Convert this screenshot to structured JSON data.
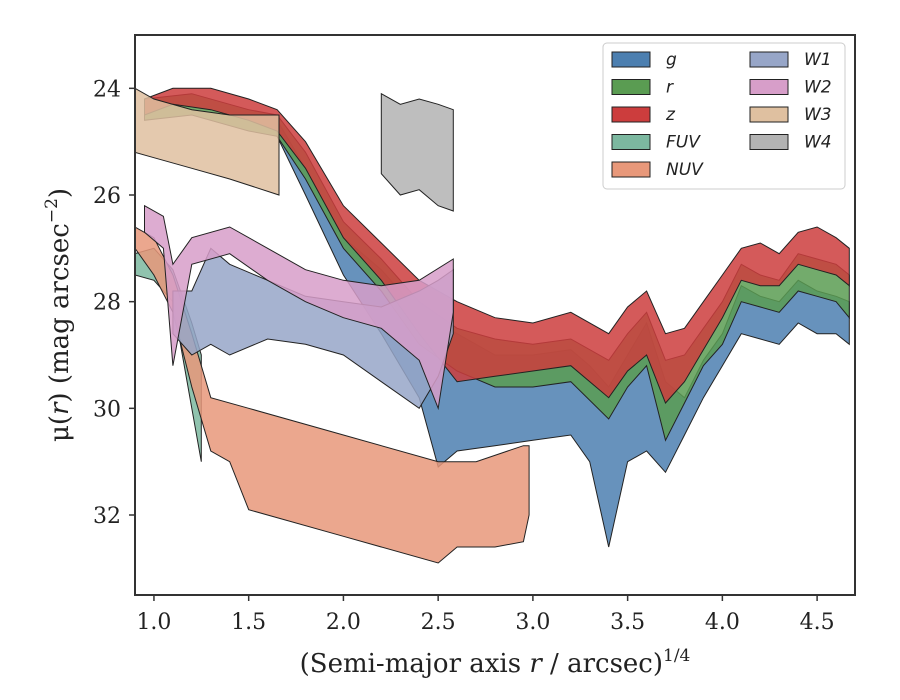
{
  "chart_data": {
    "type": "area",
    "xlabel_parts": [
      "(Semi-major axis ",
      "r",
      " / arcsec)",
      "1/4"
    ],
    "ylabel_parts": [
      "μ(",
      "r",
      ") (mag arcsec",
      "−2",
      ")"
    ],
    "xlim": [
      0.9,
      4.7
    ],
    "ylim": [
      33.5,
      23.0
    ],
    "y_inverted": true,
    "xticks": [
      1.0,
      1.5,
      2.0,
      2.5,
      3.0,
      3.5,
      4.0,
      4.5
    ],
    "xtick_labels": [
      "1.0",
      "1.5",
      "2.0",
      "2.5",
      "3.0",
      "3.5",
      "4.0",
      "4.5"
    ],
    "yticks": [
      24,
      26,
      28,
      30,
      32
    ],
    "ytick_labels": [
      "24",
      "26",
      "28",
      "30",
      "32"
    ],
    "grid": false,
    "legend_position": "top-right",
    "legend_columns": 2,
    "series": [
      {
        "name": "g",
        "color": "#4c7fb0",
        "upper": [
          [
            1.65,
            24.6
          ],
          [
            1.8,
            25.5
          ],
          [
            2.0,
            26.8
          ],
          [
            2.2,
            27.4
          ],
          [
            2.4,
            28.2
          ],
          [
            2.6,
            28.6
          ],
          [
            2.8,
            29.0
          ],
          [
            3.0,
            29.0
          ],
          [
            3.2,
            28.9
          ],
          [
            3.3,
            29.2
          ],
          [
            3.4,
            29.6
          ],
          [
            3.5,
            29.0
          ],
          [
            3.6,
            28.4
          ],
          [
            3.7,
            29.5
          ],
          [
            3.8,
            29.8
          ],
          [
            3.9,
            29.1
          ],
          [
            4.0,
            28.6
          ],
          [
            4.1,
            27.7
          ],
          [
            4.2,
            27.9
          ],
          [
            4.3,
            28.0
          ],
          [
            4.4,
            27.6
          ],
          [
            4.5,
            27.8
          ],
          [
            4.6,
            27.9
          ],
          [
            4.67,
            28.0
          ]
        ],
        "lower": [
          [
            1.65,
            24.9
          ],
          [
            1.8,
            26.0
          ],
          [
            2.0,
            27.5
          ],
          [
            2.2,
            28.6
          ],
          [
            2.4,
            29.8
          ],
          [
            2.5,
            31.1
          ],
          [
            2.6,
            30.8
          ],
          [
            2.8,
            30.7
          ],
          [
            3.0,
            30.6
          ],
          [
            3.2,
            30.5
          ],
          [
            3.3,
            31.0
          ],
          [
            3.4,
            32.6
          ],
          [
            3.5,
            31.0
          ],
          [
            3.6,
            30.8
          ],
          [
            3.7,
            31.2
          ],
          [
            3.8,
            30.5
          ],
          [
            3.9,
            29.8
          ],
          [
            4.0,
            29.2
          ],
          [
            4.1,
            28.6
          ],
          [
            4.2,
            28.7
          ],
          [
            4.3,
            28.8
          ],
          [
            4.4,
            28.4
          ],
          [
            4.5,
            28.6
          ],
          [
            4.6,
            28.6
          ],
          [
            4.67,
            28.8
          ]
        ]
      },
      {
        "name": "r",
        "color": "#5a9c52",
        "upper": [
          [
            0.95,
            24.2
          ],
          [
            1.2,
            24.1
          ],
          [
            1.5,
            24.4
          ],
          [
            1.65,
            24.5
          ],
          [
            1.8,
            25.2
          ],
          [
            2.0,
            26.5
          ],
          [
            2.2,
            27.2
          ],
          [
            2.4,
            28.0
          ],
          [
            2.6,
            28.5
          ],
          [
            2.8,
            28.7
          ],
          [
            3.0,
            28.8
          ],
          [
            3.2,
            28.7
          ],
          [
            3.4,
            29.1
          ],
          [
            3.5,
            28.6
          ],
          [
            3.6,
            28.2
          ],
          [
            3.7,
            29.1
          ],
          [
            3.8,
            29.0
          ],
          [
            3.9,
            28.5
          ],
          [
            4.0,
            28.0
          ],
          [
            4.1,
            27.3
          ],
          [
            4.2,
            27.5
          ],
          [
            4.3,
            27.6
          ],
          [
            4.4,
            27.1
          ],
          [
            4.5,
            27.2
          ],
          [
            4.6,
            27.3
          ],
          [
            4.67,
            27.5
          ]
        ],
        "lower": [
          [
            0.95,
            24.6
          ],
          [
            1.2,
            24.5
          ],
          [
            1.5,
            24.8
          ],
          [
            1.65,
            24.9
          ],
          [
            1.8,
            25.7
          ],
          [
            2.0,
            27.0
          ],
          [
            2.2,
            27.8
          ],
          [
            2.4,
            28.8
          ],
          [
            2.6,
            29.3
          ],
          [
            2.8,
            29.6
          ],
          [
            3.0,
            29.6
          ],
          [
            3.2,
            29.5
          ],
          [
            3.4,
            30.2
          ],
          [
            3.5,
            29.6
          ],
          [
            3.6,
            29.2
          ],
          [
            3.7,
            30.6
          ],
          [
            3.8,
            29.9
          ],
          [
            3.9,
            29.2
          ],
          [
            4.0,
            28.8
          ],
          [
            4.1,
            28.0
          ],
          [
            4.2,
            28.1
          ],
          [
            4.3,
            28.2
          ],
          [
            4.4,
            27.8
          ],
          [
            4.5,
            27.9
          ],
          [
            4.6,
            28.0
          ],
          [
            4.67,
            28.3
          ]
        ]
      },
      {
        "name": "z",
        "color": "#cc3d3d",
        "upper": [
          [
            0.95,
            24.2
          ],
          [
            1.1,
            24.0
          ],
          [
            1.3,
            24.0
          ],
          [
            1.5,
            24.2
          ],
          [
            1.65,
            24.4
          ],
          [
            1.8,
            25.0
          ],
          [
            2.0,
            26.2
          ],
          [
            2.2,
            26.9
          ],
          [
            2.4,
            27.6
          ],
          [
            2.6,
            28.0
          ],
          [
            2.8,
            28.3
          ],
          [
            3.0,
            28.4
          ],
          [
            3.2,
            28.2
          ],
          [
            3.4,
            28.6
          ],
          [
            3.5,
            28.1
          ],
          [
            3.6,
            27.8
          ],
          [
            3.7,
            28.6
          ],
          [
            3.8,
            28.5
          ],
          [
            3.9,
            28.0
          ],
          [
            4.0,
            27.5
          ],
          [
            4.1,
            27.0
          ],
          [
            4.2,
            26.9
          ],
          [
            4.3,
            27.1
          ],
          [
            4.4,
            26.7
          ],
          [
            4.5,
            26.6
          ],
          [
            4.6,
            26.8
          ],
          [
            4.67,
            27.0
          ]
        ],
        "lower": [
          [
            0.95,
            24.5
          ],
          [
            1.1,
            24.3
          ],
          [
            1.3,
            24.4
          ],
          [
            1.5,
            24.6
          ],
          [
            1.65,
            24.8
          ],
          [
            1.8,
            25.5
          ],
          [
            2.0,
            26.8
          ],
          [
            2.2,
            27.6
          ],
          [
            2.4,
            28.6
          ],
          [
            2.6,
            29.5
          ],
          [
            2.8,
            29.4
          ],
          [
            3.0,
            29.3
          ],
          [
            3.2,
            29.2
          ],
          [
            3.4,
            29.8
          ],
          [
            3.5,
            29.3
          ],
          [
            3.6,
            29.0
          ],
          [
            3.7,
            29.9
          ],
          [
            3.8,
            29.5
          ],
          [
            3.9,
            28.9
          ],
          [
            4.0,
            28.3
          ],
          [
            4.1,
            27.6
          ],
          [
            4.2,
            27.7
          ],
          [
            4.3,
            27.7
          ],
          [
            4.4,
            27.3
          ],
          [
            4.5,
            27.4
          ],
          [
            4.6,
            27.5
          ],
          [
            4.67,
            27.7
          ]
        ]
      },
      {
        "name": "FUV",
        "color": "#7cb8a0",
        "upper": [
          [
            0.9,
            27.1
          ],
          [
            1.0,
            27.0
          ],
          [
            1.1,
            27.4
          ],
          [
            1.2,
            28.4
          ],
          [
            1.25,
            29.0
          ]
        ],
        "lower": [
          [
            0.9,
            27.5
          ],
          [
            1.0,
            27.6
          ],
          [
            1.1,
            28.0
          ],
          [
            1.2,
            30.0
          ],
          [
            1.25,
            31.0
          ]
        ]
      },
      {
        "name": "NUV",
        "color": "#e8987a",
        "upper": [
          [
            0.9,
            26.6
          ],
          [
            1.0,
            26.8
          ],
          [
            1.1,
            27.5
          ],
          [
            1.2,
            28.6
          ],
          [
            1.3,
            29.8
          ],
          [
            1.5,
            30.0
          ],
          [
            2.0,
            30.5
          ],
          [
            2.5,
            31.0
          ],
          [
            2.7,
            31.0
          ],
          [
            2.95,
            30.7
          ],
          [
            2.98,
            30.7
          ]
        ],
        "lower": [
          [
            0.9,
            27.0
          ],
          [
            1.0,
            27.5
          ],
          [
            1.1,
            28.2
          ],
          [
            1.2,
            29.6
          ],
          [
            1.3,
            30.8
          ],
          [
            1.4,
            31.0
          ],
          [
            1.5,
            31.9
          ],
          [
            2.0,
            32.4
          ],
          [
            2.5,
            32.9
          ],
          [
            2.6,
            32.6
          ],
          [
            2.8,
            32.6
          ],
          [
            2.95,
            32.5
          ],
          [
            2.98,
            32.0
          ]
        ]
      },
      {
        "name": "W1",
        "color": "#97a6c8",
        "upper": [
          [
            1.1,
            27.8
          ],
          [
            1.2,
            27.8
          ],
          [
            1.3,
            27.0
          ],
          [
            1.4,
            27.3
          ],
          [
            1.6,
            27.6
          ],
          [
            1.8,
            27.9
          ],
          [
            2.0,
            28.0
          ],
          [
            2.2,
            28.1
          ],
          [
            2.4,
            27.8
          ],
          [
            2.5,
            27.6
          ],
          [
            2.58,
            27.4
          ]
        ],
        "lower": [
          [
            1.1,
            28.6
          ],
          [
            1.2,
            29.0
          ],
          [
            1.3,
            28.8
          ],
          [
            1.4,
            29.0
          ],
          [
            1.6,
            28.7
          ],
          [
            1.8,
            28.8
          ],
          [
            2.0,
            29.0
          ],
          [
            2.2,
            29.5
          ],
          [
            2.4,
            30.0
          ],
          [
            2.5,
            29.4
          ],
          [
            2.58,
            28.6
          ]
        ]
      },
      {
        "name": "W2",
        "color": "#d79ec9",
        "upper": [
          [
            0.95,
            26.2
          ],
          [
            1.05,
            26.4
          ],
          [
            1.1,
            27.3
          ],
          [
            1.2,
            26.8
          ],
          [
            1.4,
            26.6
          ],
          [
            1.6,
            27.0
          ],
          [
            1.8,
            27.4
          ],
          [
            2.0,
            27.6
          ],
          [
            2.2,
            27.7
          ],
          [
            2.4,
            27.6
          ],
          [
            2.58,
            27.2
          ]
        ],
        "lower": [
          [
            0.95,
            26.7
          ],
          [
            1.05,
            27.0
          ],
          [
            1.1,
            29.2
          ],
          [
            1.2,
            27.3
          ],
          [
            1.4,
            27.1
          ],
          [
            1.6,
            27.6
          ],
          [
            1.8,
            28.0
          ],
          [
            2.0,
            28.3
          ],
          [
            2.2,
            28.5
          ],
          [
            2.4,
            29.1
          ],
          [
            2.5,
            30.0
          ],
          [
            2.58,
            28.2
          ]
        ]
      },
      {
        "name": "W3",
        "color": "#dfc0a0",
        "upper": [
          [
            0.9,
            24.0
          ],
          [
            1.0,
            24.2
          ],
          [
            1.2,
            24.4
          ],
          [
            1.4,
            24.5
          ],
          [
            1.66,
            24.5
          ]
        ],
        "lower": [
          [
            0.9,
            25.2
          ],
          [
            1.0,
            25.3
          ],
          [
            1.2,
            25.5
          ],
          [
            1.4,
            25.7
          ],
          [
            1.66,
            26.0
          ]
        ]
      },
      {
        "name": "W4",
        "color": "#b3b3b3",
        "upper": [
          [
            2.2,
            24.1
          ],
          [
            2.3,
            24.3
          ],
          [
            2.4,
            24.2
          ],
          [
            2.5,
            24.3
          ],
          [
            2.58,
            24.4
          ]
        ],
        "lower": [
          [
            2.2,
            25.6
          ],
          [
            2.3,
            26.0
          ],
          [
            2.4,
            25.9
          ],
          [
            2.5,
            26.2
          ],
          [
            2.58,
            26.3
          ]
        ]
      }
    ]
  }
}
